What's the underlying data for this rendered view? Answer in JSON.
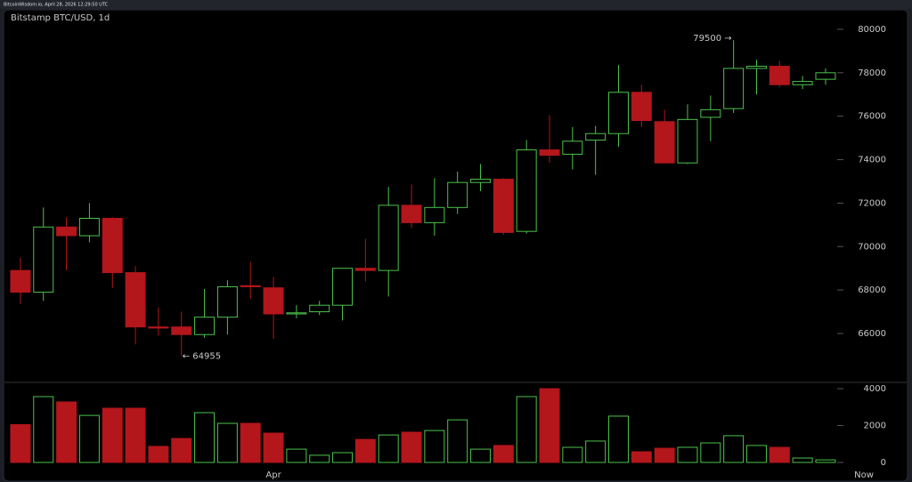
{
  "header": {
    "text": "BitcoinWisdom.io, April 28, 2026 12:29:50 UTC"
  },
  "chart_data": [
    {
      "type": "candlestick",
      "title": "Bitstamp BTC/USD, 1d",
      "categories": [
        null,
        null,
        null,
        null,
        null,
        null,
        null,
        null,
        null,
        null,
        null,
        "Apr",
        null,
        null,
        null,
        null,
        null,
        null,
        null,
        null,
        null,
        null,
        null,
        null,
        null,
        null,
        null,
        null,
        null,
        null,
        null,
        null,
        null,
        null,
        null,
        null
      ],
      "end_label": "Now",
      "open": [
        68900,
        67900,
        70900,
        70500,
        71300,
        68800,
        66300,
        66300,
        65950,
        66750,
        68200,
        68100,
        66900,
        67000,
        67300,
        69000,
        68900,
        71900,
        71100,
        71800,
        72950,
        73100,
        70700,
        74450,
        74250,
        74900,
        75200,
        77100,
        75750,
        73850,
        75950,
        76350,
        78200,
        78300,
        77450,
        77700
      ],
      "high": [
        69500,
        71800,
        71350,
        72000,
        71350,
        69100,
        67200,
        67000,
        68050,
        68450,
        69300,
        68600,
        67300,
        67500,
        69000,
        70350,
        72750,
        72850,
        73150,
        73450,
        73800,
        73150,
        74900,
        76050,
        75500,
        75550,
        78350,
        77450,
        76300,
        76550,
        76950,
        79500,
        78600,
        78550,
        77850,
        78200
      ],
      "low": [
        67350,
        67500,
        68900,
        70200,
        68100,
        65500,
        65900,
        64955,
        65800,
        65950,
        67600,
        65750,
        66700,
        66850,
        66600,
        68400,
        67700,
        70850,
        70500,
        71500,
        72550,
        70550,
        70600,
        73850,
        73550,
        73300,
        74600,
        75500,
        73850,
        73800,
        74850,
        76150,
        77000,
        77350,
        77250,
        77450
      ],
      "close": [
        67900,
        70900,
        70500,
        71300,
        68800,
        66300,
        66250,
        65950,
        66750,
        68150,
        68150,
        66900,
        66950,
        67300,
        69000,
        68900,
        71900,
        71100,
        71800,
        72950,
        73100,
        70650,
        74450,
        74200,
        74850,
        75200,
        77100,
        75800,
        73850,
        75850,
        76300,
        78200,
        78300,
        77450,
        77600,
        78000
      ],
      "up_color": "#4cc24c",
      "down_color": "#b3161b",
      "annotations": [
        {
          "value": 79500,
          "label": "79500 →",
          "at": "high"
        },
        {
          "value": 64955,
          "label": "← 64955",
          "at": "low"
        }
      ],
      "ylim": [
        63830,
        80530
      ],
      "yticks": [
        66000,
        68000,
        70000,
        72000,
        74000,
        76000,
        78000,
        80000
      ]
    },
    {
      "type": "bar",
      "values": [
        2050,
        3570,
        3280,
        2550,
        2940,
        2940,
        870,
        1300,
        2700,
        2120,
        2120,
        1590,
        720,
        390,
        530,
        1250,
        1490,
        1640,
        1730,
        2310,
        720,
        920,
        3570,
        4000,
        820,
        1160,
        2510,
        580,
        770,
        820,
        1060,
        1450,
        920,
        820,
        240,
        140
      ],
      "ylim": [
        0,
        4340
      ],
      "yticks": [
        0,
        2000,
        4000
      ]
    }
  ]
}
